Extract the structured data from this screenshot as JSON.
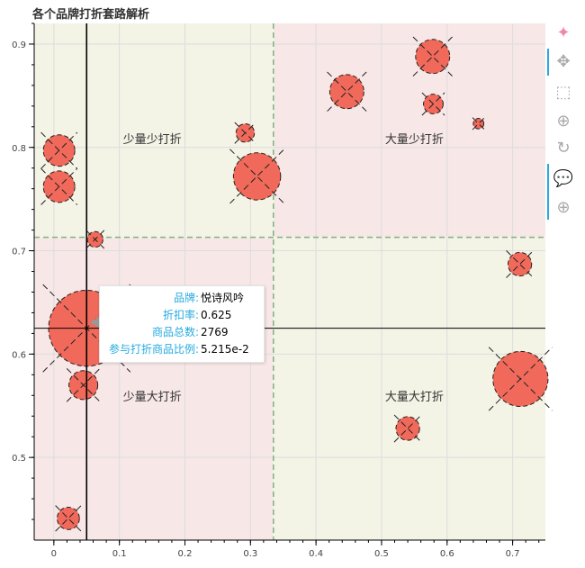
{
  "chart_data": {
    "type": "scatter",
    "title": "各个品牌打折套路解析",
    "xlim": [
      -0.03,
      0.75
    ],
    "ylim": [
      0.42,
      0.92
    ],
    "x_ticks": [
      0,
      0.1,
      0.2,
      0.3,
      0.4,
      0.5,
      0.6,
      0.7
    ],
    "x_tick_labels": [
      "0",
      "0.1",
      "0.2",
      "0.3",
      "0.4",
      "0.5",
      "0.6",
      "0.7"
    ],
    "y_ticks": [
      0.5,
      0.6,
      0.7,
      0.8,
      0.9
    ],
    "y_tick_labels": [
      "0.5",
      "0.6",
      "0.7",
      "0.8",
      "0.9"
    ],
    "x_divider": 0.335,
    "y_divider": 0.713,
    "quadrant_colors": {
      "pink": "#f7e7e7",
      "olive": "#f3f3e6"
    },
    "marker_color": "#f0695a",
    "quadrant_labels": [
      {
        "text": "少量少打折",
        "x": 0.15,
        "y": 0.804
      },
      {
        "text": "大量少打折",
        "x": 0.55,
        "y": 0.804
      },
      {
        "text": "少量大打折",
        "x": 0.15,
        "y": 0.555
      },
      {
        "text": "大量大打折",
        "x": 0.55,
        "y": 0.555
      }
    ],
    "points": [
      {
        "x": 0.008,
        "y": 0.797,
        "r": 0.024
      },
      {
        "x": 0.008,
        "y": 0.762,
        "r": 0.024
      },
      {
        "x": 0.063,
        "y": 0.711,
        "r": 0.012
      },
      {
        "x": 0.292,
        "y": 0.814,
        "r": 0.014
      },
      {
        "x": 0.31,
        "y": 0.772,
        "r": 0.036
      },
      {
        "x": 0.447,
        "y": 0.854,
        "r": 0.026
      },
      {
        "x": 0.578,
        "y": 0.888,
        "r": 0.026
      },
      {
        "x": 0.579,
        "y": 0.842,
        "r": 0.015
      },
      {
        "x": 0.648,
        "y": 0.823,
        "r": 0.008
      },
      {
        "x": 0.711,
        "y": 0.687,
        "r": 0.018
      },
      {
        "x": 0.05,
        "y": 0.625,
        "r": 0.058
      },
      {
        "x": 0.045,
        "y": 0.57,
        "r": 0.022
      },
      {
        "x": 0.54,
        "y": 0.528,
        "r": 0.018
      },
      {
        "x": 0.712,
        "y": 0.576,
        "r": 0.042
      },
      {
        "x": 0.022,
        "y": 0.441,
        "r": 0.017
      }
    ],
    "crosshair": {
      "x": 0.05,
      "y": 0.625
    }
  },
  "tooltip": {
    "rows": [
      {
        "key": "品牌:",
        "value": "悦诗风吟"
      },
      {
        "key": "折扣率:",
        "value": "0.625"
      },
      {
        "key": "商品总数:",
        "value": "2769"
      },
      {
        "key": "参与打折商品比例:",
        "value": "5.215e-2"
      }
    ]
  },
  "toolbar": {
    "tools": [
      "bokeh-logo-icon",
      "pan-icon",
      "box-zoom-icon",
      "wheel-zoom-icon",
      "reset-icon",
      "hover-icon",
      "crosshair-icon"
    ],
    "icons": [
      "✦",
      "✥",
      "⬚",
      "⊕",
      "↻",
      "💬",
      "⊕"
    ],
    "active_bar_colors": "#26aae1"
  }
}
